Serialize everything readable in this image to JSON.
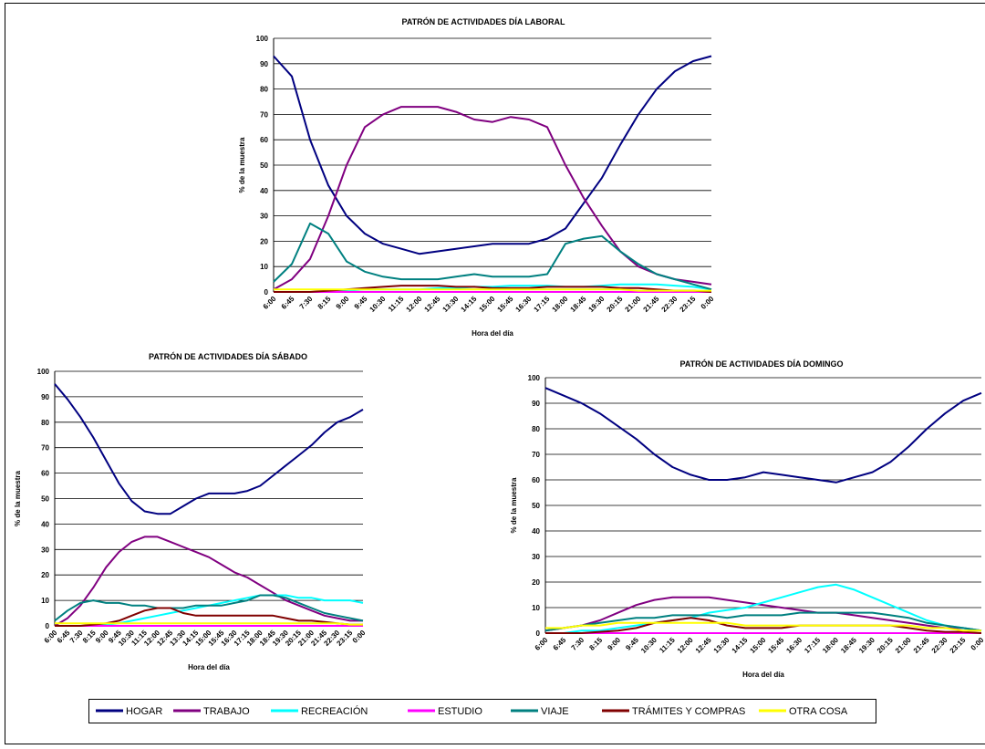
{
  "chart_data": [
    {
      "type": "line",
      "title": "PATRÓN DE ACTIVIDADES DÍA LABORAL",
      "x_label": "Hora del día",
      "y_label": "% de la muestra",
      "categories": [
        "6:00",
        "6:45",
        "7:30",
        "8:15",
        "9:00",
        "9:45",
        "10:30",
        "11:15",
        "12:00",
        "12:45",
        "13:30",
        "14:15",
        "15:00",
        "15:45",
        "16:30",
        "17:15",
        "18:00",
        "18:45",
        "19:30",
        "20:15",
        "21:00",
        "21:45",
        "22:30",
        "23:15",
        "0:00"
      ],
      "ylim": [
        0,
        100
      ],
      "yticks": [
        0,
        10,
        20,
        30,
        40,
        50,
        60,
        70,
        80,
        90,
        100
      ],
      "grid": true,
      "series": [
        {
          "values": [
            93,
            85,
            60,
            42,
            30,
            23,
            19,
            17,
            15,
            16,
            17,
            18,
            19,
            19,
            19,
            21,
            25,
            35,
            45,
            58,
            70,
            80,
            87,
            91,
            93
          ]
        },
        {
          "values": [
            1,
            5,
            13,
            30,
            50,
            65,
            70,
            73,
            73,
            73,
            71,
            68,
            67,
            69,
            68,
            65,
            50,
            37,
            26,
            16,
            10,
            7,
            5,
            4,
            3
          ]
        },
        {
          "values": [
            0,
            0,
            0,
            0,
            0.5,
            1,
            1,
            1,
            1,
            1.5,
            1.5,
            2,
            2,
            2.5,
            2.5,
            2.5,
            2,
            2,
            2.5,
            3,
            3,
            3,
            2.5,
            2,
            1
          ]
        },
        {
          "values": [
            0,
            0,
            0,
            0,
            0,
            0,
            0,
            0,
            0,
            0,
            0,
            0,
            0,
            0,
            0,
            0,
            0,
            0,
            0,
            0,
            0,
            0,
            0,
            0,
            0
          ]
        },
        {
          "values": [
            4,
            11,
            27,
            23,
            12,
            8,
            6,
            5,
            5,
            5,
            6,
            7,
            6,
            6,
            6,
            7,
            19,
            21,
            22,
            16,
            11,
            7,
            5,
            3,
            1
          ]
        },
        {
          "values": [
            0,
            0,
            0,
            0.5,
            1,
            1.5,
            2,
            2.5,
            2.5,
            2.5,
            2,
            2,
            1.5,
            1.5,
            1.5,
            2,
            2,
            2,
            2,
            1.5,
            1.5,
            1,
            0.5,
            0.5,
            0
          ]
        },
        {
          "values": [
            1,
            1,
            1,
            1,
            1,
            1,
            1,
            1,
            1,
            1,
            1,
            1,
            1,
            1,
            1,
            1,
            1,
            1,
            1,
            1,
            0.5,
            0.5,
            0.5,
            0.5,
            0.5
          ]
        }
      ]
    },
    {
      "type": "line",
      "title": "PATRÓN DE ACTIVIDADES DÍA SÁBADO",
      "x_label": "Hora del día",
      "y_label": "% de la muestra",
      "categories": [
        "6:00",
        "6:45",
        "7:30",
        "8:15",
        "9:00",
        "9:45",
        "10:30",
        "11:15",
        "12:00",
        "12:45",
        "13:30",
        "14:15",
        "15:00",
        "15:45",
        "16:30",
        "17:15",
        "18:00",
        "18:45",
        "19:30",
        "20:15",
        "21:00",
        "21:45",
        "22:30",
        "23:15",
        "0:00"
      ],
      "ylim": [
        0,
        100
      ],
      "yticks": [
        0,
        10,
        20,
        30,
        40,
        50,
        60,
        70,
        80,
        90,
        100
      ],
      "grid": true,
      "series": [
        {
          "values": [
            95,
            89,
            82,
            74,
            65,
            56,
            49,
            45,
            44,
            44,
            47,
            50,
            52,
            52,
            52,
            53,
            55,
            59,
            63,
            67,
            71,
            76,
            80,
            82,
            85
          ]
        },
        {
          "values": [
            0,
            3,
            8,
            15,
            23,
            29,
            33,
            35,
            35,
            33,
            31,
            29,
            27,
            24,
            21,
            19,
            16,
            13,
            10,
            8,
            6,
            4,
            3,
            2,
            2
          ]
        },
        {
          "values": [
            0,
            0,
            0,
            0,
            0.5,
            1,
            2,
            3,
            4,
            5,
            6,
            7,
            8,
            9,
            10,
            11,
            12,
            12,
            12,
            11,
            11,
            10,
            10,
            10,
            9
          ]
        },
        {
          "values": [
            0,
            0,
            0,
            0,
            0,
            0,
            0,
            0,
            0,
            0,
            0,
            0,
            0,
            0,
            0,
            0,
            0,
            0,
            0,
            0,
            0,
            0,
            0,
            0,
            0
          ]
        },
        {
          "values": [
            2,
            6,
            9,
            10,
            9,
            9,
            8,
            8,
            7,
            7,
            7,
            8,
            8,
            8,
            9,
            10,
            12,
            12,
            11,
            9,
            7,
            5,
            4,
            3,
            2
          ]
        },
        {
          "values": [
            0,
            0,
            0,
            0.5,
            1,
            2,
            4,
            6,
            7,
            7,
            5,
            4,
            4,
            4,
            4,
            4,
            4,
            4,
            3,
            2,
            2,
            1.5,
            1,
            0.5,
            0.5
          ]
        },
        {
          "values": [
            1,
            1,
            1,
            1,
            1,
            1,
            1,
            1,
            1,
            1,
            1,
            1,
            1,
            1,
            1,
            1,
            1,
            1,
            1,
            1,
            1,
            1,
            1,
            0.5,
            0.5
          ]
        }
      ]
    },
    {
      "type": "line",
      "title": "PATRÓN DE ACTIVIDADES DÍA DOMINGO",
      "x_label": "Hora del día",
      "y_label": "% de la muestra",
      "categories": [
        "6:00",
        "6:45",
        "7:30",
        "8:15",
        "9:00",
        "9:45",
        "10:30",
        "11:15",
        "12:00",
        "12:45",
        "13:30",
        "14:15",
        "15:00",
        "15:45",
        "16:30",
        "17:15",
        "18:00",
        "18:45",
        "19:30",
        "20:15",
        "21:00",
        "21:45",
        "22:30",
        "23:15",
        "0:00"
      ],
      "ylim": [
        0,
        100
      ],
      "yticks": [
        0,
        10,
        20,
        30,
        40,
        50,
        60,
        70,
        80,
        90,
        100
      ],
      "grid": true,
      "series": [
        {
          "values": [
            96,
            93,
            90,
            86,
            81,
            76,
            70,
            65,
            62,
            60,
            60,
            61,
            63,
            62,
            61,
            60,
            59,
            61,
            63,
            67,
            73,
            80,
            86,
            91,
            94
          ]
        },
        {
          "values": [
            1,
            2,
            3,
            5,
            8,
            11,
            13,
            14,
            14,
            14,
            13,
            12,
            11,
            10,
            9,
            8,
            8,
            7,
            6,
            5,
            4,
            3,
            2,
            2,
            1
          ]
        },
        {
          "values": [
            0,
            0,
            1,
            1,
            2,
            3,
            4,
            5,
            6,
            8,
            9,
            10,
            12,
            14,
            16,
            18,
            19,
            17,
            14,
            11,
            8,
            5,
            3,
            2,
            1
          ]
        },
        {
          "values": [
            0,
            0,
            0,
            0,
            0,
            0,
            0,
            0,
            0,
            0,
            0,
            0,
            0,
            0,
            0,
            0,
            0,
            0,
            0,
            0,
            0,
            0,
            0,
            0,
            0
          ]
        },
        {
          "values": [
            1,
            2,
            3,
            4,
            5,
            6,
            6,
            7,
            7,
            7,
            6,
            7,
            7,
            7,
            8,
            8,
            8,
            8,
            8,
            7,
            6,
            4,
            3,
            2,
            1
          ]
        },
        {
          "values": [
            0,
            0,
            0,
            0.5,
            1,
            2,
            4,
            5,
            6,
            5,
            3,
            2,
            2,
            2,
            3,
            3,
            3,
            3,
            3,
            3,
            2,
            1,
            0.5,
            0.5,
            0
          ]
        },
        {
          "values": [
            2,
            2,
            3,
            3,
            4,
            4,
            4,
            4,
            4,
            4,
            4,
            3,
            3,
            3,
            3,
            3,
            3,
            3,
            3,
            3,
            3,
            2,
            2,
            1,
            1
          ]
        }
      ]
    }
  ],
  "legend": [
    {
      "name": "HOGAR",
      "color": "#000080"
    },
    {
      "name": "TRABAJO",
      "color": "#800080"
    },
    {
      "name": "RECREACIÓN",
      "color": "#00ffff"
    },
    {
      "name": "ESTUDIO",
      "color": "#ff00ff"
    },
    {
      "name": "VIAJE",
      "color": "#008080"
    },
    {
      "name": "TRÁMITES Y COMPRAS",
      "color": "#800000"
    },
    {
      "name": "OTRA COSA",
      "color": "#ffff00"
    }
  ]
}
